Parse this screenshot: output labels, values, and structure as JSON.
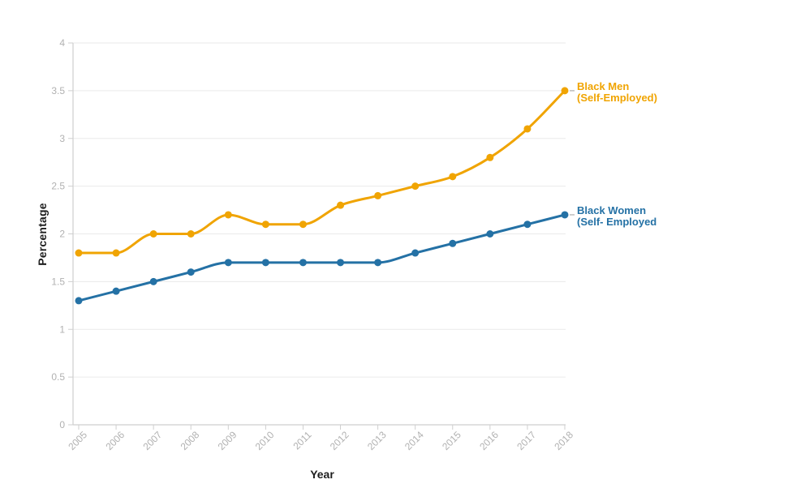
{
  "chart_data": {
    "type": "line",
    "xlabel": "Year",
    "ylabel": "Percentage",
    "categories": [
      "2005",
      "2006",
      "2007",
      "2008",
      "2009",
      "2010",
      "2011",
      "2012",
      "2013",
      "2014",
      "2015",
      "2016",
      "2017",
      "2018"
    ],
    "series": [
      {
        "name": "Black Men (Self-Employed)",
        "label_lines": [
          "Black Men",
          "(Self-Employed)"
        ],
        "color": "#F0A402",
        "values": [
          1.8,
          1.8,
          2.0,
          2.0,
          2.2,
          2.1,
          2.1,
          2.3,
          2.4,
          2.5,
          2.6,
          2.8,
          3.1,
          3.5
        ]
      },
      {
        "name": "Black Women (Self- Employed",
        "label_lines": [
          "Black Women",
          "(Self- Employed"
        ],
        "color": "#2471A5",
        "values": [
          1.3,
          1.4,
          1.5,
          1.6,
          1.7,
          1.7,
          1.7,
          1.7,
          1.7,
          1.8,
          1.9,
          2.0,
          2.1,
          2.2
        ]
      }
    ],
    "ylim": [
      0,
      4
    ],
    "y_ticks": [
      0,
      0.5,
      1,
      1.5,
      2,
      2.5,
      3,
      3.5,
      4
    ],
    "x_tick_rotation": -45,
    "grid": true,
    "legend_position": "labels-at-line-ends"
  }
}
